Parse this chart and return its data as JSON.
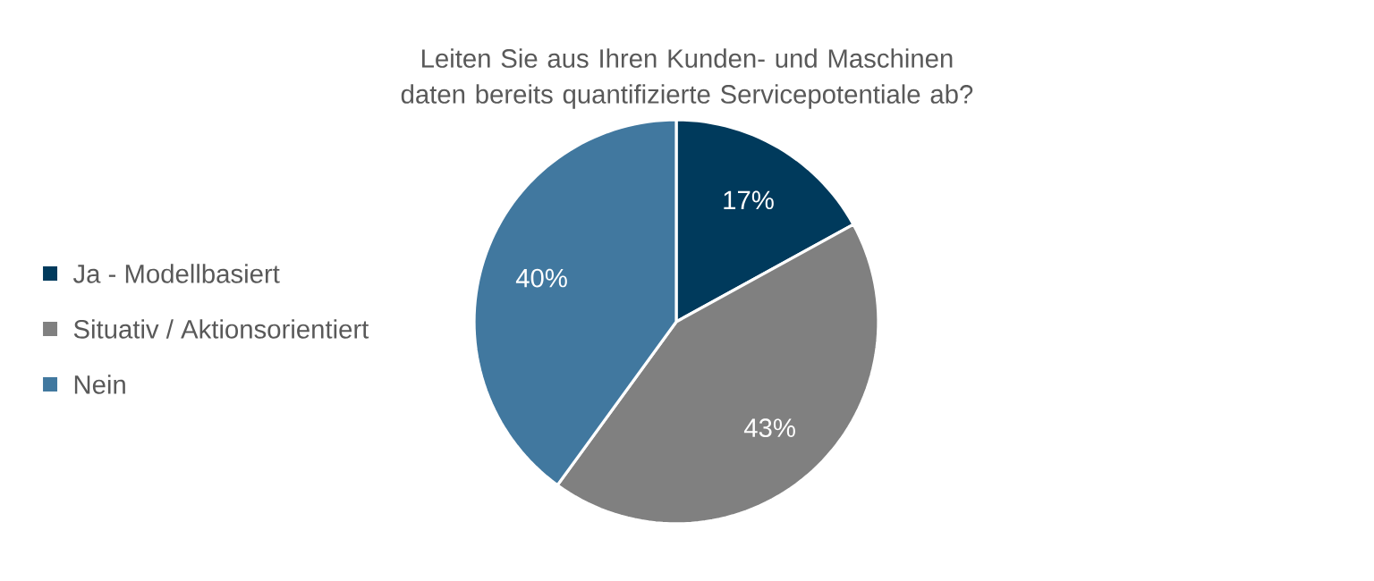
{
  "chart_data": {
    "type": "pie",
    "title": "Leiten Sie aus Ihren Kunden- und Maschinen daten bereits quantifizierte Servicepotentiale ab?",
    "categories": [
      "Ja - Modellbasiert",
      "Situativ / Aktionsorientiert",
      "Nein"
    ],
    "values": [
      17,
      43,
      40
    ],
    "value_labels": [
      "17%",
      "43%",
      "40%"
    ],
    "colors": [
      "#003a5c",
      "#808080",
      "#41789f"
    ],
    "legend": "left"
  }
}
